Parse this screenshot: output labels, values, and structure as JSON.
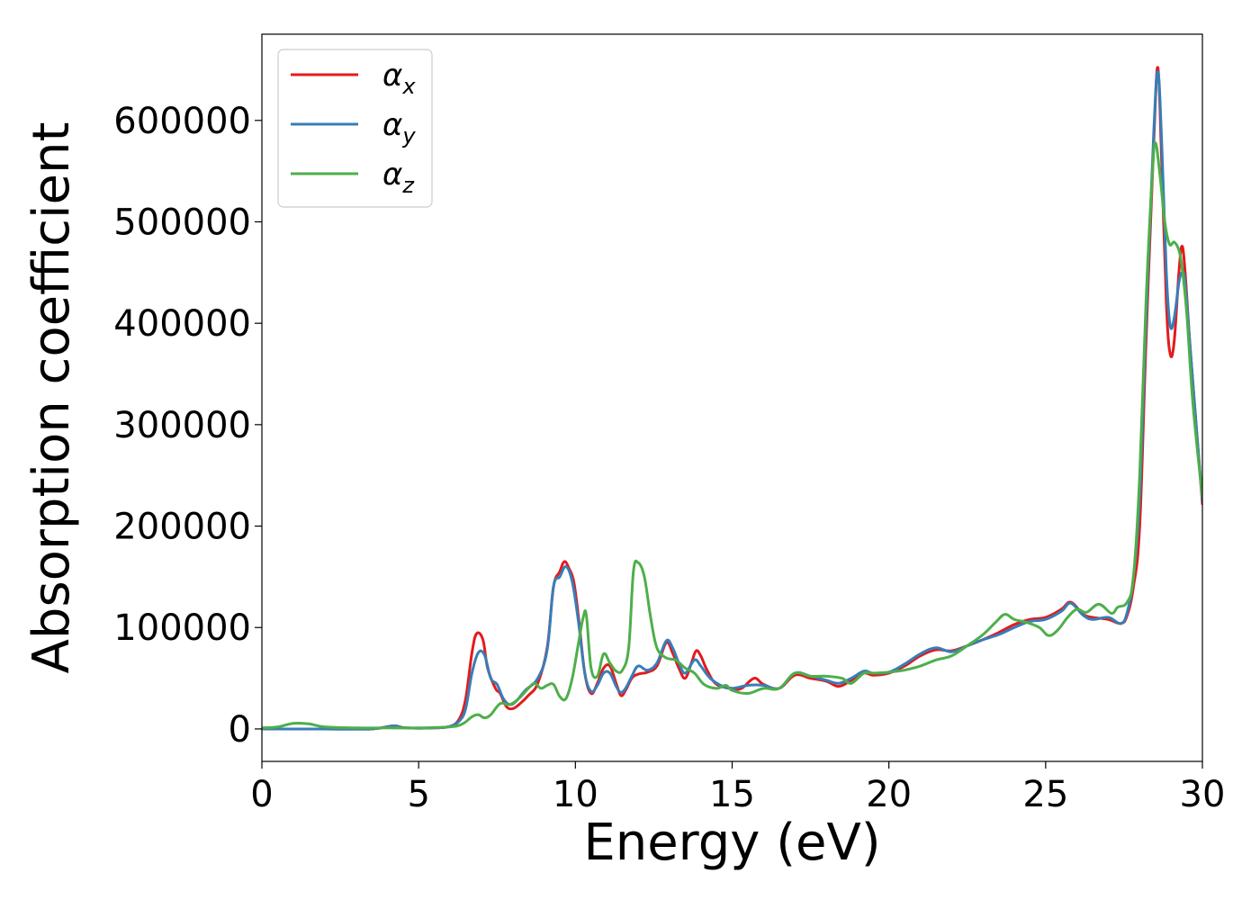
{
  "chart_data": {
    "type": "line",
    "title": "",
    "xlabel": "Energy (eV)",
    "ylabel": "Absorption coefficient",
    "xlim": [
      0,
      30
    ],
    "ylim": [
      -32000,
      685000
    ],
    "xticks": [
      0,
      5,
      10,
      15,
      20,
      25,
      30
    ],
    "xtick_labels": [
      "0",
      "5",
      "10",
      "15",
      "20",
      "25",
      "30"
    ],
    "yticks": [
      0,
      100000,
      200000,
      300000,
      400000,
      500000,
      600000
    ],
    "ytick_labels": [
      "0",
      "100000",
      "200000",
      "300000",
      "400000",
      "500000",
      "600000"
    ],
    "grid": false,
    "legend_position": "top-left",
    "series": [
      {
        "name": "α_x",
        "legend_main": "α",
        "legend_sub": "x",
        "color": "#e41a1c",
        "points": [
          [
            0,
            0
          ],
          [
            2,
            0
          ],
          [
            3.5,
            0
          ],
          [
            4.2,
            3000
          ],
          [
            4.6,
            1000
          ],
          [
            5.5,
            1000
          ],
          [
            6,
            2500
          ],
          [
            6.3,
            10000
          ],
          [
            6.5,
            30000
          ],
          [
            6.7,
            75000
          ],
          [
            6.85,
            94000
          ],
          [
            7.05,
            88000
          ],
          [
            7.2,
            60000
          ],
          [
            7.45,
            40000
          ],
          [
            7.6,
            35000
          ],
          [
            7.8,
            22000
          ],
          [
            8,
            20000
          ],
          [
            8.2,
            24000
          ],
          [
            8.5,
            33000
          ],
          [
            8.8,
            45000
          ],
          [
            9.1,
            80000
          ],
          [
            9.3,
            140000
          ],
          [
            9.5,
            155000
          ],
          [
            9.65,
            165000
          ],
          [
            9.8,
            158000
          ],
          [
            9.95,
            145000
          ],
          [
            10.1,
            110000
          ],
          [
            10.3,
            55000
          ],
          [
            10.5,
            35000
          ],
          [
            10.7,
            45000
          ],
          [
            10.9,
            60000
          ],
          [
            11.1,
            62000
          ],
          [
            11.3,
            45000
          ],
          [
            11.45,
            33000
          ],
          [
            11.6,
            38000
          ],
          [
            11.8,
            50000
          ],
          [
            12,
            54000
          ],
          [
            12.3,
            56000
          ],
          [
            12.6,
            62000
          ],
          [
            12.9,
            85000
          ],
          [
            13.1,
            75000
          ],
          [
            13.3,
            60000
          ],
          [
            13.5,
            50000
          ],
          [
            13.7,
            65000
          ],
          [
            13.85,
            77000
          ],
          [
            14,
            72000
          ],
          [
            14.2,
            58000
          ],
          [
            14.5,
            44000
          ],
          [
            15,
            40000
          ],
          [
            15.3,
            40000
          ],
          [
            15.7,
            50000
          ],
          [
            16,
            44000
          ],
          [
            16.5,
            40000
          ],
          [
            17,
            53000
          ],
          [
            17.5,
            50000
          ],
          [
            18,
            47000
          ],
          [
            18.4,
            42000
          ],
          [
            18.8,
            48000
          ],
          [
            19.2,
            55000
          ],
          [
            19.5,
            53000
          ],
          [
            20,
            55000
          ],
          [
            20.5,
            62000
          ],
          [
            21,
            72000
          ],
          [
            21.5,
            78000
          ],
          [
            22,
            77000
          ],
          [
            22.5,
            82000
          ],
          [
            23,
            88000
          ],
          [
            23.5,
            95000
          ],
          [
            24,
            103000
          ],
          [
            24.5,
            108000
          ],
          [
            25,
            110000
          ],
          [
            25.5,
            118000
          ],
          [
            25.8,
            125000
          ],
          [
            26.2,
            113000
          ],
          [
            26.5,
            110000
          ],
          [
            27,
            108000
          ],
          [
            27.4,
            104000
          ],
          [
            27.6,
            112000
          ],
          [
            27.8,
            140000
          ],
          [
            28,
            200000
          ],
          [
            28.2,
            380000
          ],
          [
            28.45,
            580000
          ],
          [
            28.58,
            652000
          ],
          [
            28.7,
            560000
          ],
          [
            28.85,
            420000
          ],
          [
            28.97,
            370000
          ],
          [
            29.1,
            382000
          ],
          [
            29.25,
            450000
          ],
          [
            29.35,
            476000
          ],
          [
            29.45,
            450000
          ],
          [
            29.6,
            380000
          ],
          [
            29.8,
            300000
          ],
          [
            30,
            222000
          ]
        ]
      },
      {
        "name": "α_y",
        "legend_main": "α",
        "legend_sub": "y",
        "color": "#377eb8",
        "points": [
          [
            0,
            0
          ],
          [
            2,
            0
          ],
          [
            3.5,
            0
          ],
          [
            4.2,
            3000
          ],
          [
            4.6,
            1000
          ],
          [
            5.5,
            1000
          ],
          [
            6,
            2500
          ],
          [
            6.3,
            8000
          ],
          [
            6.5,
            20000
          ],
          [
            6.7,
            55000
          ],
          [
            6.9,
            75000
          ],
          [
            7.1,
            73000
          ],
          [
            7.3,
            50000
          ],
          [
            7.5,
            44000
          ],
          [
            7.7,
            30000
          ],
          [
            7.9,
            24000
          ],
          [
            8.1,
            27000
          ],
          [
            8.4,
            38000
          ],
          [
            8.8,
            50000
          ],
          [
            9.1,
            78000
          ],
          [
            9.3,
            140000
          ],
          [
            9.5,
            150000
          ],
          [
            9.7,
            160000
          ],
          [
            9.9,
            145000
          ],
          [
            10.1,
            105000
          ],
          [
            10.3,
            55000
          ],
          [
            10.5,
            37000
          ],
          [
            10.7,
            43000
          ],
          [
            10.9,
            55000
          ],
          [
            11.1,
            55000
          ],
          [
            11.3,
            42000
          ],
          [
            11.45,
            36000
          ],
          [
            11.6,
            40000
          ],
          [
            11.8,
            52000
          ],
          [
            12,
            62000
          ],
          [
            12.3,
            58000
          ],
          [
            12.6,
            65000
          ],
          [
            12.9,
            87000
          ],
          [
            13.1,
            80000
          ],
          [
            13.3,
            65000
          ],
          [
            13.5,
            55000
          ],
          [
            13.8,
            68000
          ],
          [
            14,
            62000
          ],
          [
            14.3,
            50000
          ],
          [
            14.7,
            42000
          ],
          [
            15,
            40000
          ],
          [
            15.5,
            43000
          ],
          [
            16,
            43000
          ],
          [
            16.5,
            40000
          ],
          [
            17,
            55000
          ],
          [
            17.5,
            52000
          ],
          [
            18,
            48000
          ],
          [
            18.4,
            45000
          ],
          [
            18.8,
            50000
          ],
          [
            19.2,
            57000
          ],
          [
            19.5,
            55000
          ],
          [
            20,
            56000
          ],
          [
            20.5,
            64000
          ],
          [
            21,
            74000
          ],
          [
            21.5,
            80000
          ],
          [
            22,
            76000
          ],
          [
            22.5,
            82000
          ],
          [
            23,
            88000
          ],
          [
            23.5,
            93000
          ],
          [
            24,
            100000
          ],
          [
            24.5,
            106000
          ],
          [
            25,
            108000
          ],
          [
            25.5,
            116000
          ],
          [
            25.8,
            124000
          ],
          [
            26.2,
            112000
          ],
          [
            26.5,
            108000
          ],
          [
            27,
            110000
          ],
          [
            27.4,
            104000
          ],
          [
            27.6,
            115000
          ],
          [
            27.8,
            150000
          ],
          [
            28,
            230000
          ],
          [
            28.2,
            400000
          ],
          [
            28.45,
            590000
          ],
          [
            28.58,
            648000
          ],
          [
            28.7,
            580000
          ],
          [
            28.85,
            450000
          ],
          [
            28.97,
            398000
          ],
          [
            29.1,
            405000
          ],
          [
            29.25,
            440000
          ],
          [
            29.35,
            450000
          ],
          [
            29.45,
            440000
          ],
          [
            29.6,
            380000
          ],
          [
            29.8,
            300000
          ],
          [
            30,
            225000
          ]
        ]
      },
      {
        "name": "α_z",
        "legend_main": "α",
        "legend_sub": "z",
        "color": "#4daf4a",
        "points": [
          [
            0,
            1000
          ],
          [
            0.5,
            2000
          ],
          [
            1,
            5500
          ],
          [
            1.5,
            5000
          ],
          [
            2,
            2000
          ],
          [
            3,
            1000
          ],
          [
            4,
            1000
          ],
          [
            5,
            1000
          ],
          [
            6,
            2000
          ],
          [
            6.4,
            5000
          ],
          [
            6.7,
            12000
          ],
          [
            6.9,
            14000
          ],
          [
            7.1,
            11000
          ],
          [
            7.3,
            14000
          ],
          [
            7.6,
            25000
          ],
          [
            7.9,
            24000
          ],
          [
            8.2,
            30000
          ],
          [
            8.5,
            40000
          ],
          [
            8.7,
            45000
          ],
          [
            8.9,
            40000
          ],
          [
            9.1,
            43000
          ],
          [
            9.3,
            44000
          ],
          [
            9.5,
            32000
          ],
          [
            9.7,
            30000
          ],
          [
            9.9,
            50000
          ],
          [
            10.1,
            85000
          ],
          [
            10.25,
            110000
          ],
          [
            10.35,
            112000
          ],
          [
            10.5,
            60000
          ],
          [
            10.7,
            52000
          ],
          [
            10.9,
            74000
          ],
          [
            11.1,
            65000
          ],
          [
            11.3,
            57000
          ],
          [
            11.5,
            58000
          ],
          [
            11.7,
            80000
          ],
          [
            11.85,
            155000
          ],
          [
            12,
            164000
          ],
          [
            12.2,
            150000
          ],
          [
            12.4,
            110000
          ],
          [
            12.6,
            80000
          ],
          [
            12.9,
            70000
          ],
          [
            13.2,
            68000
          ],
          [
            13.5,
            60000
          ],
          [
            13.8,
            55000
          ],
          [
            14.1,
            44000
          ],
          [
            14.5,
            40000
          ],
          [
            14.8,
            43000
          ],
          [
            15,
            38000
          ],
          [
            15.5,
            35000
          ],
          [
            16,
            40000
          ],
          [
            16.5,
            40000
          ],
          [
            17,
            55000
          ],
          [
            17.5,
            52000
          ],
          [
            18,
            52000
          ],
          [
            18.5,
            50000
          ],
          [
            18.8,
            45000
          ],
          [
            19.2,
            55000
          ],
          [
            19.5,
            55000
          ],
          [
            20,
            56000
          ],
          [
            20.5,
            58000
          ],
          [
            21,
            62000
          ],
          [
            21.5,
            68000
          ],
          [
            22,
            72000
          ],
          [
            22.5,
            82000
          ],
          [
            23,
            93000
          ],
          [
            23.4,
            105000
          ],
          [
            23.7,
            113000
          ],
          [
            24,
            108000
          ],
          [
            24.4,
            105000
          ],
          [
            24.8,
            100000
          ],
          [
            25.1,
            92000
          ],
          [
            25.4,
            98000
          ],
          [
            25.7,
            110000
          ],
          [
            26,
            118000
          ],
          [
            26.3,
            115000
          ],
          [
            26.7,
            123000
          ],
          [
            27.1,
            114000
          ],
          [
            27.3,
            120000
          ],
          [
            27.6,
            125000
          ],
          [
            27.8,
            150000
          ],
          [
            28,
            250000
          ],
          [
            28.2,
            420000
          ],
          [
            28.4,
            545000
          ],
          [
            28.5,
            578000
          ],
          [
            28.65,
            545000
          ],
          [
            28.8,
            500000
          ],
          [
            28.95,
            478000
          ],
          [
            29.1,
            480000
          ],
          [
            29.25,
            472000
          ],
          [
            29.35,
            455000
          ],
          [
            29.5,
            410000
          ],
          [
            29.7,
            320000
          ],
          [
            30,
            228000
          ]
        ]
      }
    ]
  }
}
